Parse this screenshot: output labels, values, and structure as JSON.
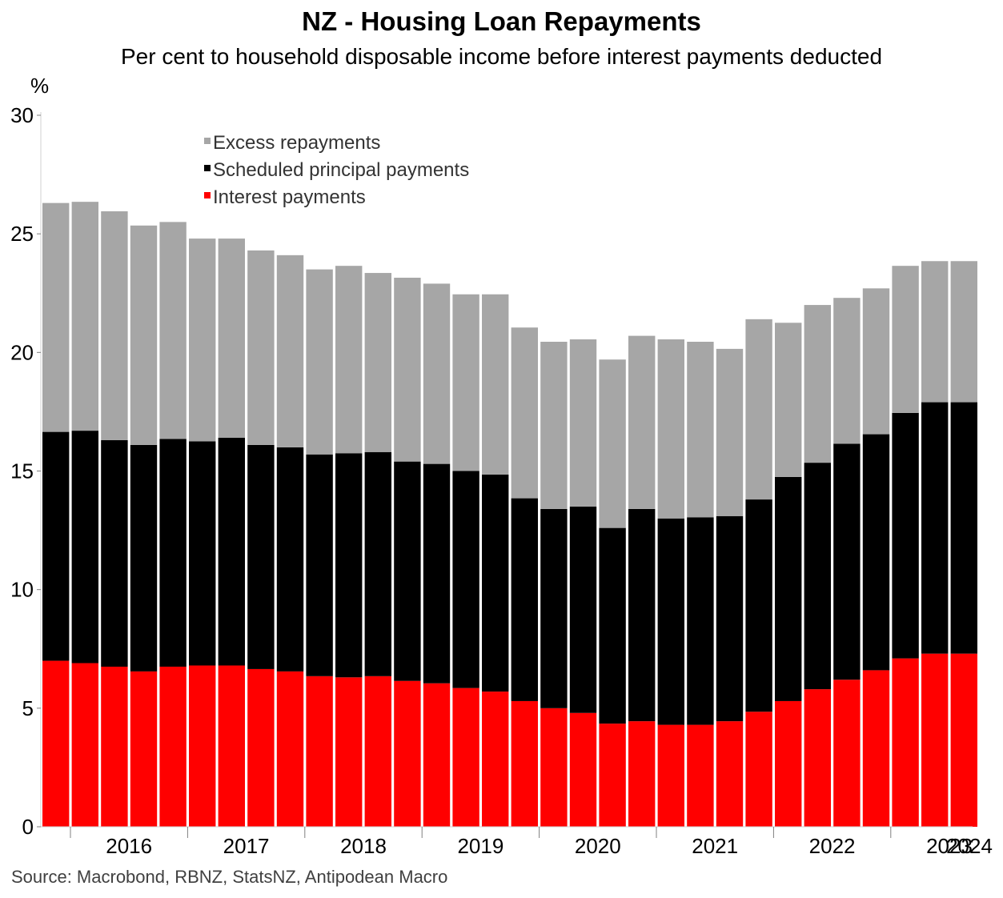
{
  "chart_data": {
    "type": "bar",
    "stacked": true,
    "title": "NZ - Housing Loan Repayments",
    "subtitle": "Per cent to household disposable income before interest payments deducted",
    "ylabel": "%",
    "ylim": [
      0,
      30
    ],
    "yticks": [
      0,
      5,
      10,
      15,
      20,
      25,
      30
    ],
    "xtick_labels": [
      "2016",
      "2017",
      "2018",
      "2019",
      "2020",
      "2021",
      "2022",
      "2023",
      "2024"
    ],
    "categories": [
      "2015 Q4",
      "2016 Q1",
      "2016 Q2",
      "2016 Q3",
      "2016 Q4",
      "2017 Q1",
      "2017 Q2",
      "2017 Q3",
      "2017 Q4",
      "2018 Q1",
      "2018 Q2",
      "2018 Q3",
      "2018 Q4",
      "2019 Q1",
      "2019 Q2",
      "2019 Q3",
      "2019 Q4",
      "2020 Q1",
      "2020 Q2",
      "2020 Q3",
      "2020 Q4",
      "2021 Q1",
      "2021 Q2",
      "2021 Q3",
      "2021 Q4",
      "2022 Q1",
      "2022 Q2",
      "2022 Q3",
      "2022 Q4",
      "2023 Q1",
      "2023 Q2",
      "2023 Q3"
    ],
    "series": [
      {
        "name": "Interest payments",
        "color": "#ff0000",
        "values": [
          7.0,
          6.9,
          6.75,
          6.55,
          6.75,
          6.8,
          6.8,
          6.65,
          6.55,
          6.35,
          6.3,
          6.35,
          6.15,
          6.05,
          5.85,
          5.7,
          5.3,
          5.0,
          4.8,
          4.35,
          4.45,
          4.3,
          4.3,
          4.45,
          4.85,
          5.3,
          5.8,
          6.2,
          6.6,
          7.1,
          7.3,
          7.3
        ]
      },
      {
        "name": "Scheduled principal payments",
        "color": "#000000",
        "values": [
          9.65,
          9.8,
          9.55,
          9.55,
          9.6,
          9.45,
          9.6,
          9.45,
          9.45,
          9.35,
          9.45,
          9.45,
          9.25,
          9.25,
          9.15,
          9.15,
          8.55,
          8.4,
          8.7,
          8.25,
          8.95,
          8.7,
          8.75,
          8.65,
          8.95,
          9.45,
          9.55,
          9.95,
          9.95,
          10.35,
          10.6,
          10.6
        ]
      },
      {
        "name": "Excess repayments",
        "color": "#a6a6a6",
        "values": [
          9.65,
          9.65,
          9.65,
          9.25,
          9.15,
          8.55,
          8.4,
          8.2,
          8.1,
          7.8,
          7.9,
          7.55,
          7.75,
          7.6,
          7.45,
          7.6,
          7.2,
          7.05,
          7.05,
          7.1,
          7.3,
          7.55,
          7.4,
          7.05,
          7.6,
          6.5,
          6.65,
          6.15,
          6.15,
          6.2,
          5.95,
          5.95
        ]
      }
    ],
    "legend_order": [
      "Excess repayments",
      "Scheduled principal payments",
      "Interest payments"
    ],
    "legend_position": "top-left",
    "grid": false
  },
  "source": "Source: Macrobond, RBNZ, StatsNZ, Antipodean Macro"
}
